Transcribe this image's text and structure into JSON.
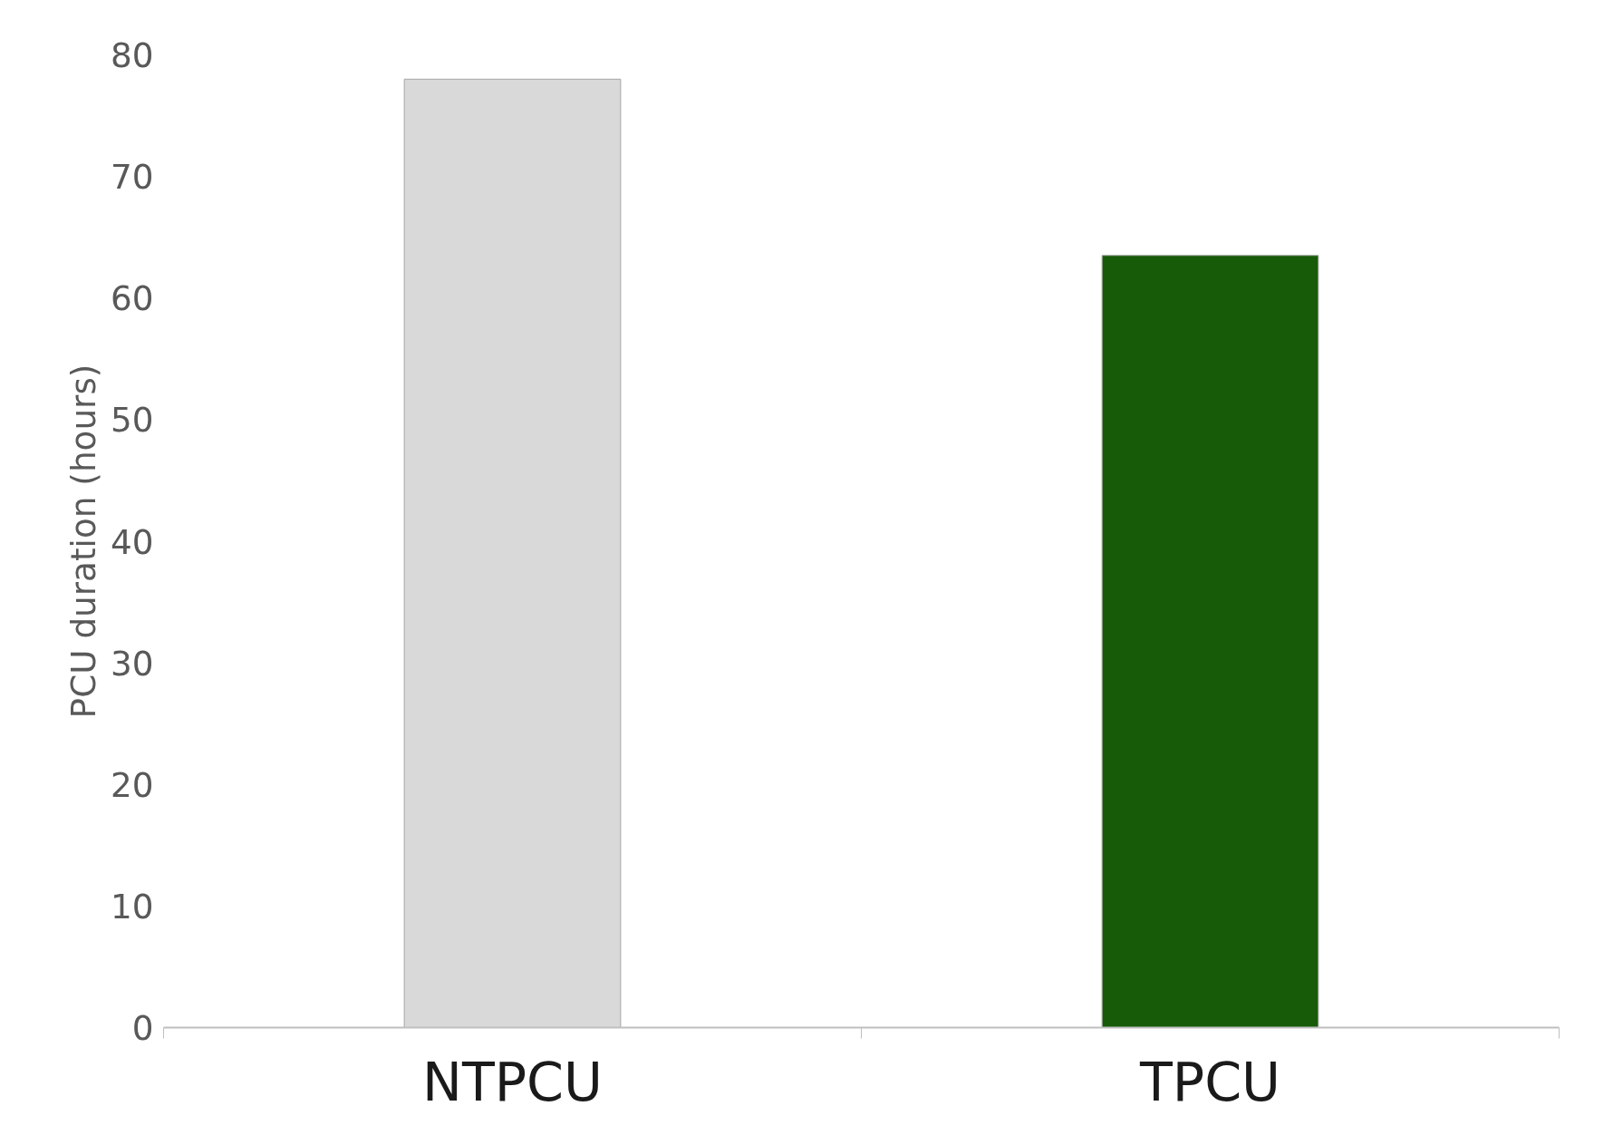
{
  "chart_data": {
    "type": "bar",
    "ylabel": "PCU duration (hours)",
    "categories": [
      "NTPCU",
      "TPCU"
    ],
    "values": [
      78,
      63.5
    ],
    "colors": [
      "#d9d9d9",
      "#175a08"
    ],
    "ylim": [
      0,
      80
    ],
    "yticks": [
      0,
      10,
      20,
      30,
      40,
      50,
      60,
      70,
      80
    ],
    "grid": false
  }
}
